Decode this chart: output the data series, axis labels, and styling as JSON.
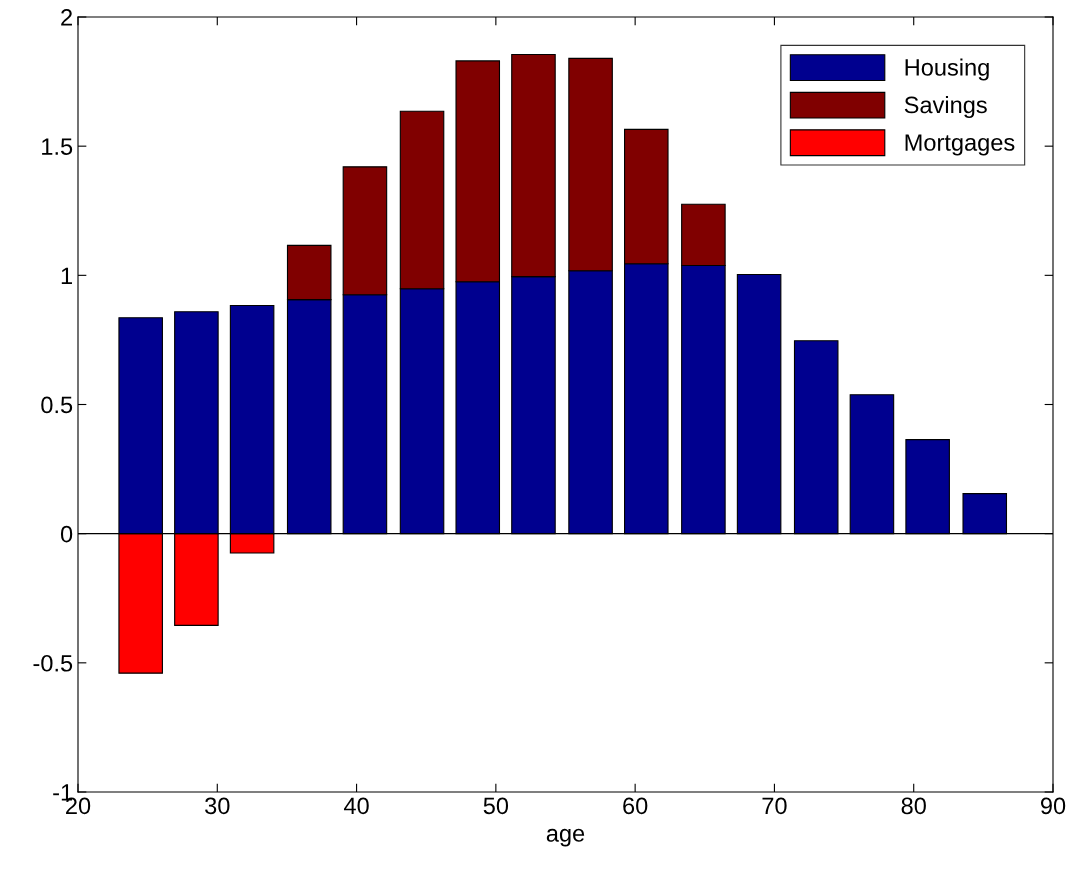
{
  "chart_data": {
    "type": "bar",
    "xlabel": "age",
    "stacked": true,
    "x": [
      24.5,
      28.5,
      32.5,
      36.6,
      40.6,
      44.7,
      48.7,
      52.7,
      56.8,
      60.8,
      64.9,
      68.9,
      73.0,
      77.0,
      81.0,
      85.1
    ],
    "series": [
      {
        "name": "Housing",
        "color": "#00008f",
        "values": [
          0.836,
          0.859,
          0.883,
          0.906,
          0.925,
          0.948,
          0.975,
          0.995,
          1.018,
          1.045,
          1.038,
          1.003,
          0.747,
          0.538,
          0.364,
          0.155
        ]
      },
      {
        "name": "Savings",
        "color": "#800000",
        "values": [
          null,
          null,
          null,
          0.21,
          0.495,
          0.687,
          0.855,
          0.86,
          0.822,
          0.52,
          0.237,
          null,
          null,
          null,
          null,
          null
        ]
      },
      {
        "name": "Mortgages",
        "color": "#ff0000",
        "values": [
          -0.54,
          -0.355,
          -0.075,
          null,
          null,
          null,
          null,
          null,
          null,
          null,
          null,
          null,
          null,
          null,
          null,
          null
        ]
      }
    ],
    "ref_lines": [
      {
        "axis": "y",
        "value": 0,
        "color": "#000000"
      }
    ],
    "xlim": [
      20,
      90
    ],
    "xticks": [
      20,
      30,
      40,
      50,
      60,
      70,
      80,
      90
    ],
    "ylim": [
      -1,
      2
    ],
    "yticks": [
      -1,
      -0.5,
      0,
      0.5,
      1,
      1.5,
      2
    ],
    "legend": "top right",
    "grid": false
  }
}
